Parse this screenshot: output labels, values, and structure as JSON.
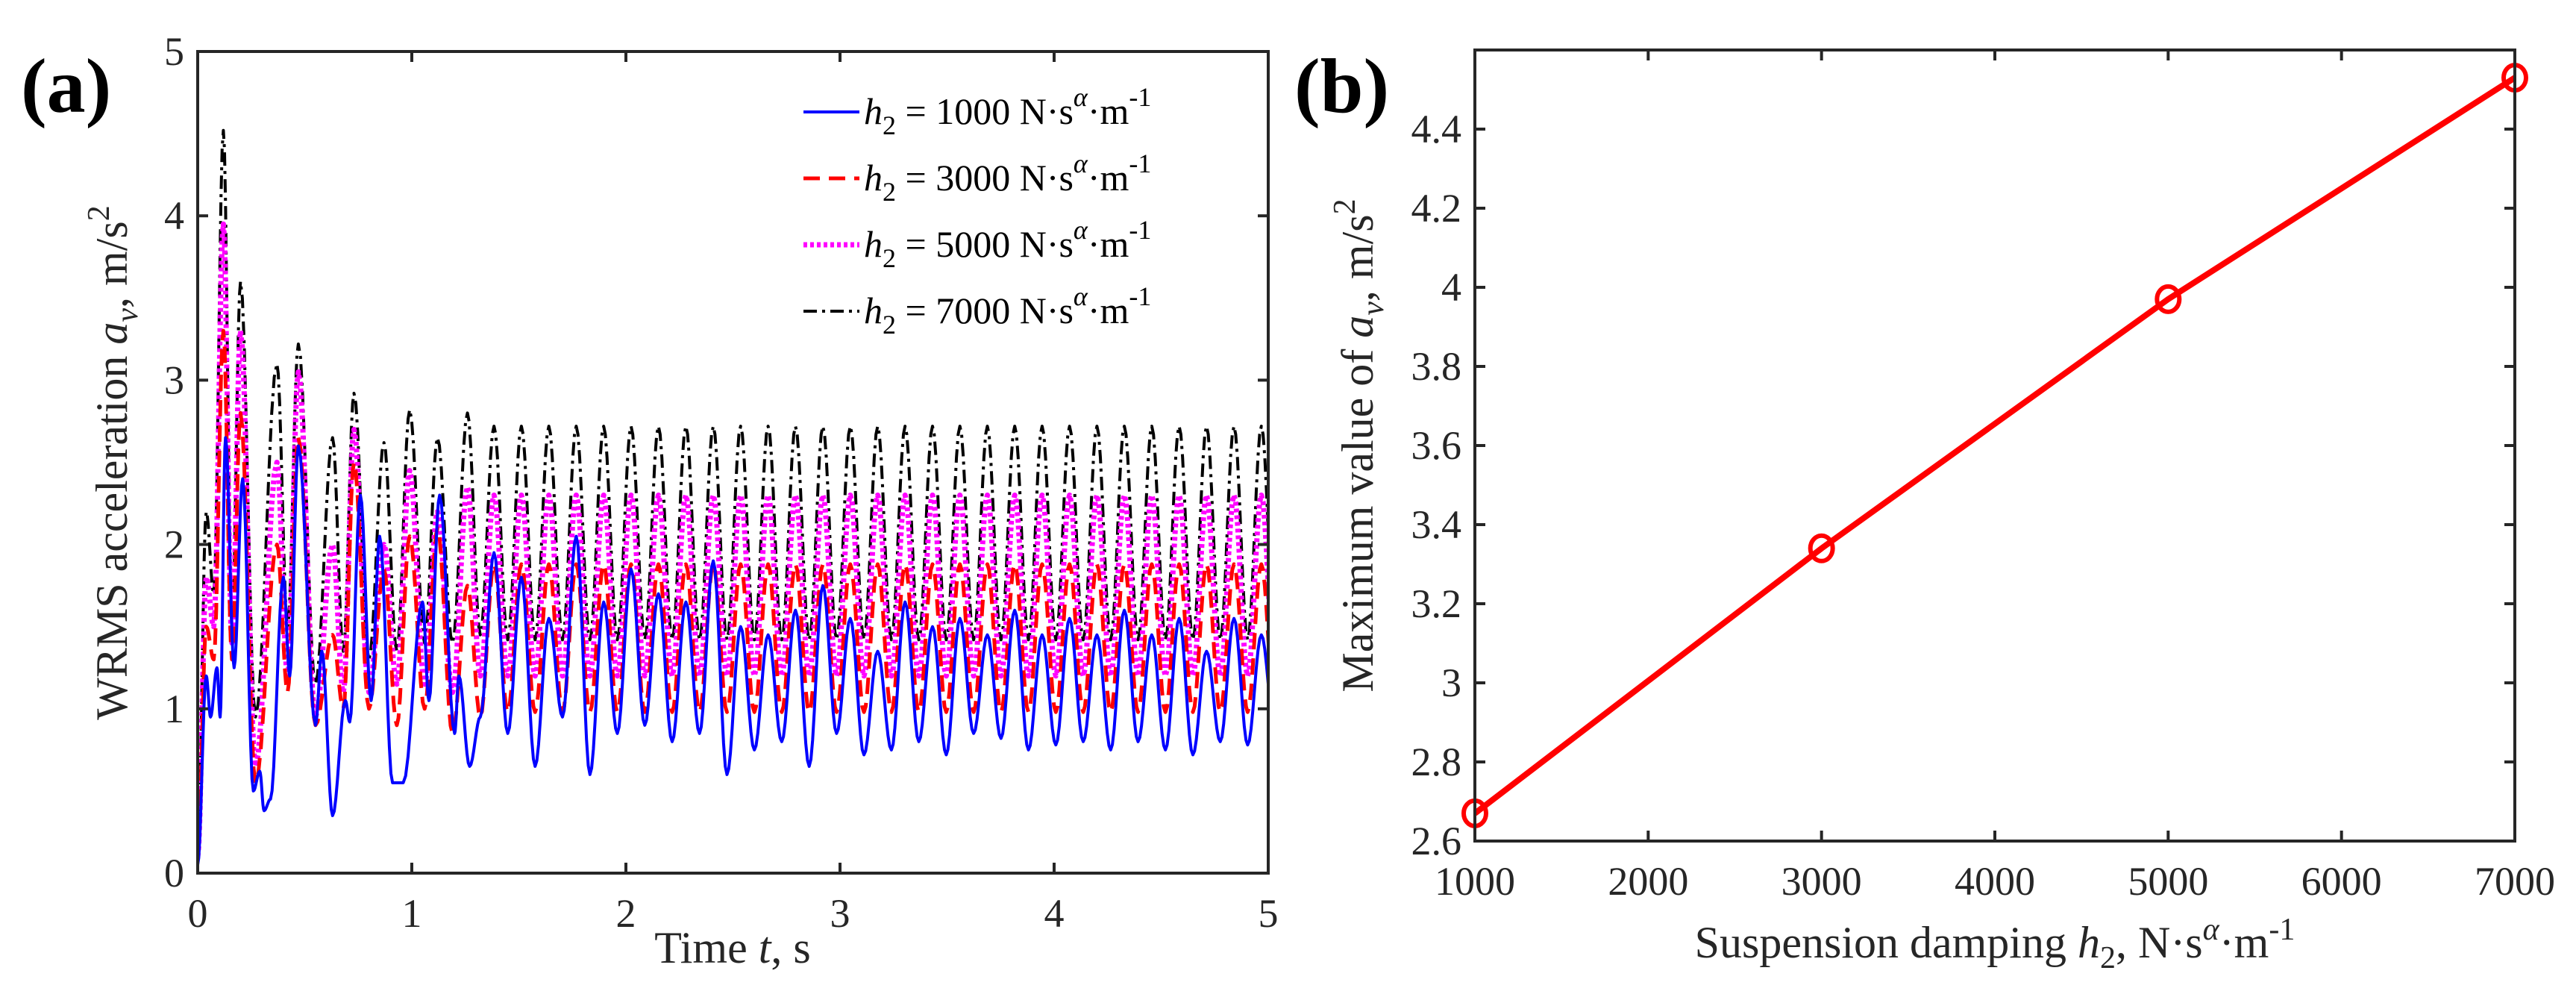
{
  "chart_data": [
    {
      "type": "line",
      "panel_label": "(a)",
      "xlabel": {
        "pre": "Time ",
        "var": "t",
        "post": ", s"
      },
      "ylabel": {
        "pre": "WRMS acceleration ",
        "var": "a",
        "sub": "v",
        "post": ", m/s",
        "sup": "2"
      },
      "xlim": [
        0,
        5
      ],
      "ylim": [
        0,
        5
      ],
      "xticks": [
        "0",
        "1",
        "2",
        "3",
        "4",
        "5"
      ],
      "yticks": [
        "0",
        "1",
        "2",
        "3",
        "4",
        "5"
      ],
      "legend_position": "top-right",
      "series": [
        {
          "name": "h2 = 1000 N·s^α·m^-1",
          "legend": {
            "var": "h",
            "sub": "2",
            "mid": " = 1000 N·s",
            "sup": "α",
            "unit": "·m",
            "exp": "-1"
          },
          "color": "#0000ff",
          "style": "solid",
          "keypoints": [
            [
              0,
              0.05
            ],
            [
              0.04,
              1.2
            ],
            [
              0.06,
              0.95
            ],
            [
              0.09,
              1.25
            ],
            [
              0.105,
              0.95
            ],
            [
              0.13,
              2.65
            ],
            [
              0.17,
              1.25
            ],
            [
              0.21,
              2.4
            ],
            [
              0.26,
              0.5
            ],
            [
              0.29,
              0.62
            ],
            [
              0.31,
              0.38
            ],
            [
              0.34,
              0.45
            ],
            [
              0.4,
              1.8
            ],
            [
              0.43,
              1.2
            ],
            [
              0.47,
              2.6
            ],
            [
              0.55,
              0.9
            ],
            [
              0.58,
              1.35
            ],
            [
              0.63,
              0.35
            ],
            [
              0.69,
              1.05
            ],
            [
              0.71,
              0.92
            ],
            [
              0.76,
              2.3
            ],
            [
              0.81,
              1.05
            ],
            [
              0.85,
              2.05
            ],
            [
              0.91,
              0.55
            ],
            [
              0.96,
              0.55
            ],
            [
              1.05,
              1.65
            ],
            [
              1.08,
              1.05
            ],
            [
              1.13,
              2.3
            ],
            [
              1.2,
              0.85
            ],
            [
              1.22,
              1.2
            ],
            [
              1.27,
              0.65
            ],
            [
              1.32,
              0.95
            ]
          ],
          "steady": {
            "from": 1.32,
            "period": 0.128,
            "peaks": [
              1.95,
              1.8,
              1.55,
              2.05,
              1.65,
              1.85,
              1.7,
              1.65,
              1.9,
              1.5,
              1.45,
              1.6,
              1.75,
              1.55,
              1.35,
              1.65,
              1.5,
              1.55,
              1.45,
              1.6,
              1.45,
              1.55,
              1.45,
              1.6,
              1.45,
              1.55,
              1.35,
              1.55,
              1.45,
              1.52
            ],
            "troughs": [
              0.85,
              0.65,
              0.95,
              0.6,
              0.85,
              0.9,
              0.8,
              0.85,
              0.6,
              0.75,
              0.8,
              0.65,
              0.85,
              0.72,
              0.75,
              0.8,
              0.72,
              0.85,
              0.82,
              0.75,
              0.78,
              0.8,
              0.75,
              0.8,
              0.75,
              0.72,
              0.8,
              0.78,
              0.85,
              0.8
            ]
          }
        },
        {
          "name": "h2 = 3000 N·s^α·m^-1",
          "legend": {
            "var": "h",
            "sub": "2",
            "mid": " = 3000 N·s",
            "sup": "α",
            "unit": "·m",
            "exp": "-1"
          },
          "color": "#ff0000",
          "style": "dashed",
          "keypoints": [
            [
              0,
              0.1
            ],
            [
              0.04,
              1.5
            ],
            [
              0.075,
              1.3
            ],
            [
              0.12,
              3.3
            ],
            [
              0.16,
              1.3
            ],
            [
              0.2,
              2.8
            ],
            [
              0.27,
              0.55
            ],
            [
              0.37,
              2.0
            ],
            [
              0.42,
              1.1
            ],
            [
              0.47,
              2.65
            ],
            [
              0.55,
              0.9
            ],
            [
              0.63,
              1.45
            ],
            [
              0.68,
              1.0
            ],
            [
              0.73,
              2.5
            ],
            [
              0.8,
              1.0
            ],
            [
              0.87,
              1.85
            ],
            [
              0.93,
              0.9
            ],
            [
              0.99,
              2.05
            ],
            [
              1.06,
              1.0
            ],
            [
              1.12,
              2.1
            ],
            [
              1.19,
              0.85
            ],
            [
              1.26,
              1.75
            ],
            [
              1.32,
              0.95
            ]
          ],
          "steady": {
            "from": 1.32,
            "period": 0.128,
            "peaks": [
              1.88
            ],
            "troughs": [
              0.98
            ]
          }
        },
        {
          "name": "h2 = 5000 N·s^α·m^-1",
          "legend": {
            "var": "h",
            "sub": "2",
            "mid": " = 5000 N·s",
            "sup": "α",
            "unit": "·m",
            "exp": "-1"
          },
          "color": "#ff00ff",
          "style": "dotted",
          "keypoints": [
            [
              0,
              0.1
            ],
            [
              0.04,
              1.8
            ],
            [
              0.075,
              1.5
            ],
            [
              0.12,
              3.95
            ],
            [
              0.16,
              1.4
            ],
            [
              0.2,
              3.3
            ],
            [
              0.27,
              0.65
            ],
            [
              0.37,
              2.5
            ],
            [
              0.42,
              1.2
            ],
            [
              0.47,
              3.05
            ],
            [
              0.55,
              0.95
            ],
            [
              0.63,
              2.0
            ],
            [
              0.68,
              1.1
            ],
            [
              0.73,
              2.7
            ],
            [
              0.8,
              1.1
            ],
            [
              0.87,
              2.0
            ],
            [
              0.93,
              1.15
            ],
            [
              0.99,
              2.45
            ],
            [
              1.06,
              1.15
            ],
            [
              1.12,
              2.2
            ],
            [
              1.19,
              1.1
            ],
            [
              1.26,
              2.35
            ],
            [
              1.32,
              1.2
            ]
          ],
          "steady": {
            "from": 1.32,
            "period": 0.128,
            "peaks": [
              2.3
            ],
            "troughs": [
              1.2
            ]
          }
        },
        {
          "name": "h2 = 7000 N·s^α·m^-1",
          "legend": {
            "var": "h",
            "sub": "2",
            "mid": " = 7000 N·s",
            "sup": "α",
            "unit": "·m",
            "exp": "-1"
          },
          "color": "#000000",
          "style": "dashdot",
          "keypoints": [
            [
              0,
              0.1
            ],
            [
              0.04,
              2.2
            ],
            [
              0.075,
              1.7
            ],
            [
              0.12,
              4.52
            ],
            [
              0.16,
              1.5
            ],
            [
              0.2,
              3.6
            ],
            [
              0.27,
              0.95
            ],
            [
              0.37,
              3.1
            ],
            [
              0.42,
              1.5
            ],
            [
              0.47,
              3.22
            ],
            [
              0.55,
              1.15
            ],
            [
              0.63,
              2.65
            ],
            [
              0.68,
              1.35
            ],
            [
              0.73,
              2.92
            ],
            [
              0.8,
              1.3
            ],
            [
              0.87,
              2.62
            ],
            [
              0.93,
              1.35
            ],
            [
              0.99,
              2.82
            ],
            [
              1.06,
              1.4
            ],
            [
              1.12,
              2.65
            ],
            [
              1.19,
              1.4
            ],
            [
              1.26,
              2.8
            ],
            [
              1.32,
              1.45
            ]
          ],
          "steady": {
            "from": 1.32,
            "period": 0.128,
            "peaks": [
              2.72
            ],
            "troughs": [
              1.42
            ]
          }
        }
      ]
    },
    {
      "type": "line",
      "panel_label": "(b)",
      "xlabel": {
        "pre": "Suspension damping ",
        "var": "h",
        "sub": "2",
        "mid": ", N·s",
        "sup": "α",
        "unit": "·m",
        "exp": "-1"
      },
      "ylabel": {
        "pre": "Maximum value of ",
        "var": "a",
        "sub": "v",
        "post": ", m/s",
        "sup": "2"
      },
      "xlim": [
        1000,
        7000
      ],
      "ylim": [
        2.6,
        4.6
      ],
      "xticks": [
        "1000",
        "2000",
        "3000",
        "4000",
        "5000",
        "6000",
        "7000"
      ],
      "yticks": [
        "2.6",
        "2.8",
        "3",
        "3.2",
        "3.4",
        "3.6",
        "3.8",
        "4",
        "4.2",
        "4.4"
      ],
      "color": "#ff0000",
      "marker": "circle",
      "x": [
        1000,
        3000,
        5000,
        7000
      ],
      "y": [
        2.67,
        3.34,
        3.97,
        4.53
      ]
    }
  ]
}
